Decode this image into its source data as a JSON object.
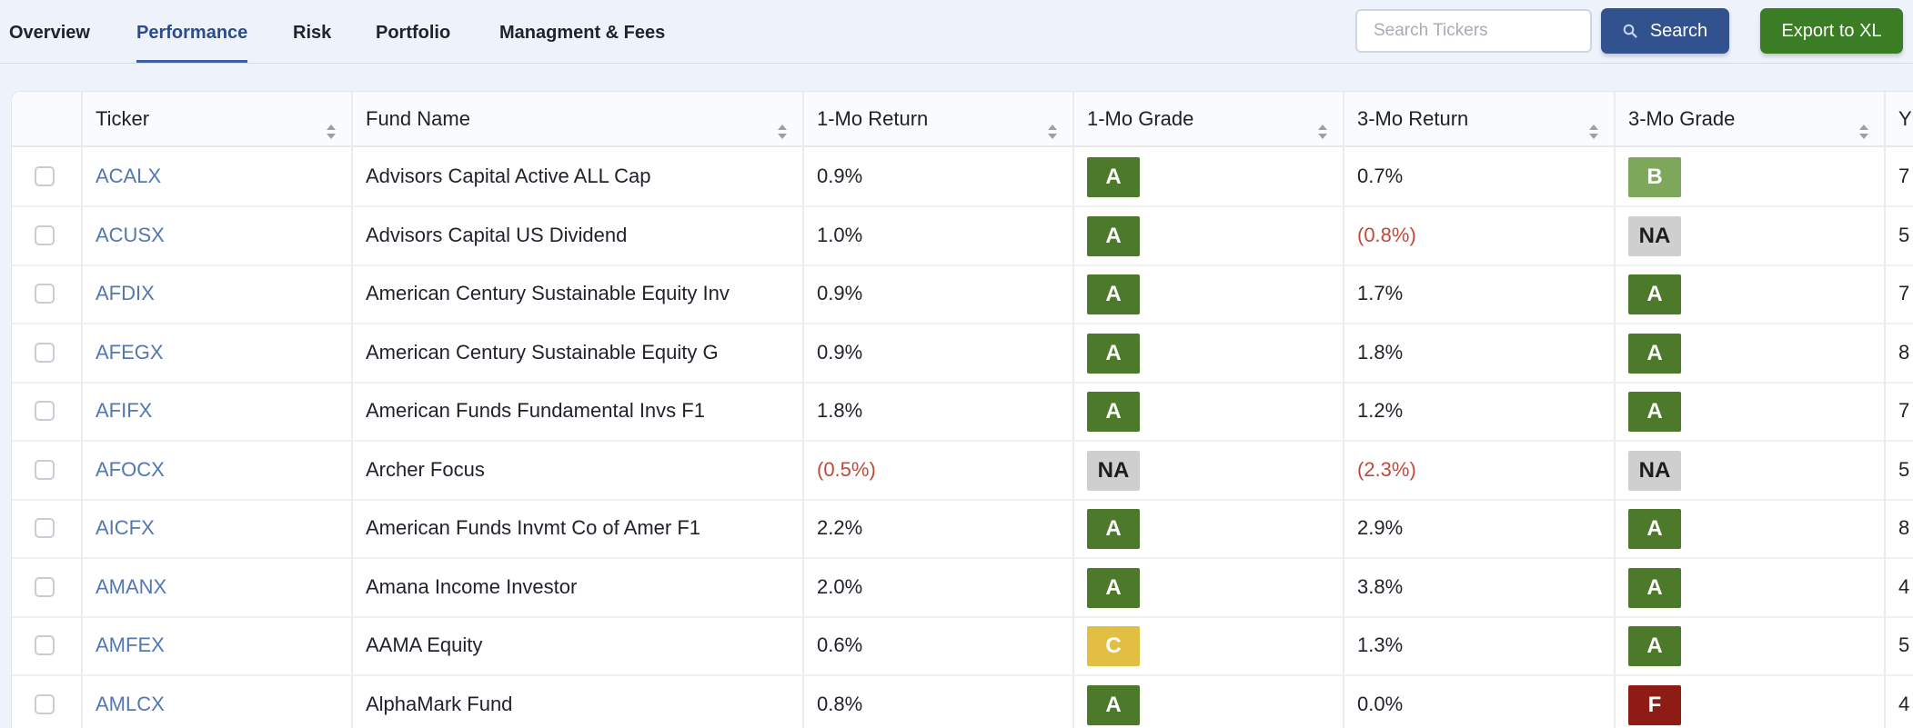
{
  "tabs": [
    {
      "label": "Overview",
      "active": false
    },
    {
      "label": "Performance",
      "active": true
    },
    {
      "label": "Risk",
      "active": false
    },
    {
      "label": "Portfolio",
      "active": false
    },
    {
      "label": "Managment & Fees",
      "active": false
    }
  ],
  "search": {
    "placeholder": "Search Tickers",
    "value": "",
    "button_label": "Search",
    "icon": "search-icon"
  },
  "export_label": "Export to XL",
  "colors": {
    "accent": "#31528f",
    "export": "#3b7d24",
    "grade_A": "#4d7a2a",
    "grade_B": "#7da75a",
    "grade_C": "#e2bf43",
    "grade_F": "#8e1c14",
    "grade_NA": "#cfcfcf",
    "negative": "#c04a3a",
    "link": "#5277b3"
  },
  "columns": [
    {
      "key": "select",
      "label": ""
    },
    {
      "key": "ticker",
      "label": "Ticker"
    },
    {
      "key": "fund_name",
      "label": "Fund Name"
    },
    {
      "key": "ret_1mo",
      "label": "1-Mo Return"
    },
    {
      "key": "grade_1mo",
      "label": "1-Mo Grade"
    },
    {
      "key": "ret_3mo",
      "label": "3-Mo Return"
    },
    {
      "key": "grade_3mo",
      "label": "3-Mo Grade"
    },
    {
      "key": "next",
      "label": "Y"
    }
  ],
  "rows": [
    {
      "ticker": "ACALX",
      "fund_name": "Advisors Capital Active ALL Cap",
      "ret_1mo": "0.9%",
      "grade_1mo": "A",
      "ret_3mo": "0.7%",
      "grade_3mo": "B",
      "next": "7"
    },
    {
      "ticker": "ACUSX",
      "fund_name": "Advisors Capital US Dividend",
      "ret_1mo": "1.0%",
      "grade_1mo": "A",
      "ret_3mo": "(0.8%)",
      "grade_3mo": "NA",
      "next": "5"
    },
    {
      "ticker": "AFDIX",
      "fund_name": "American Century Sustainable Equity Inv",
      "ret_1mo": "0.9%",
      "grade_1mo": "A",
      "ret_3mo": "1.7%",
      "grade_3mo": "A",
      "next": "7"
    },
    {
      "ticker": "AFEGX",
      "fund_name": "American Century Sustainable Equity G",
      "ret_1mo": "0.9%",
      "grade_1mo": "A",
      "ret_3mo": "1.8%",
      "grade_3mo": "A",
      "next": "8"
    },
    {
      "ticker": "AFIFX",
      "fund_name": "American Funds Fundamental Invs F1",
      "ret_1mo": "1.8%",
      "grade_1mo": "A",
      "ret_3mo": "1.2%",
      "grade_3mo": "A",
      "next": "7"
    },
    {
      "ticker": "AFOCX",
      "fund_name": "Archer Focus",
      "ret_1mo": "(0.5%)",
      "grade_1mo": "NA",
      "ret_3mo": "(2.3%)",
      "grade_3mo": "NA",
      "next": "5"
    },
    {
      "ticker": "AICFX",
      "fund_name": "American Funds Invmt Co of Amer F1",
      "ret_1mo": "2.2%",
      "grade_1mo": "A",
      "ret_3mo": "2.9%",
      "grade_3mo": "A",
      "next": "8"
    },
    {
      "ticker": "AMANX",
      "fund_name": "Amana Income Investor",
      "ret_1mo": "2.0%",
      "grade_1mo": "A",
      "ret_3mo": "3.8%",
      "grade_3mo": "A",
      "next": "4"
    },
    {
      "ticker": "AMFEX",
      "fund_name": "AAMA Equity",
      "ret_1mo": "0.6%",
      "grade_1mo": "C",
      "ret_3mo": "1.3%",
      "grade_3mo": "A",
      "next": "5"
    },
    {
      "ticker": "AMLCX",
      "fund_name": "AlphaMark Fund",
      "ret_1mo": "0.8%",
      "grade_1mo": "A",
      "ret_3mo": "0.0%",
      "grade_3mo": "F",
      "next": "4"
    }
  ]
}
